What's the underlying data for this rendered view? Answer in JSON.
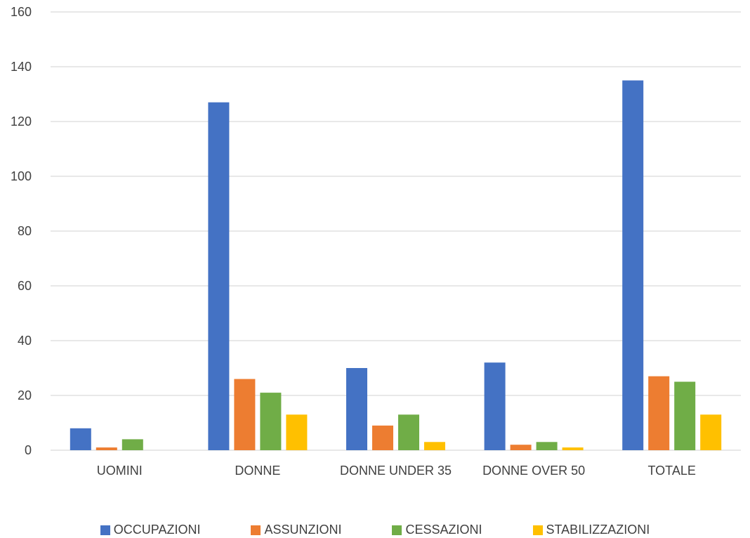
{
  "chart_data": {
    "type": "bar",
    "categories": [
      "UOMINI",
      "DONNE",
      "DONNE UNDER 35",
      "DONNE OVER 50",
      "TOTALE"
    ],
    "series": [
      {
        "name": "OCCUPAZIONI",
        "color": "#4472C4",
        "values": [
          8,
          127,
          30,
          32,
          135
        ]
      },
      {
        "name": "ASSUNZIONI",
        "color": "#ED7D31",
        "values": [
          1,
          26,
          9,
          2,
          27
        ]
      },
      {
        "name": "CESSAZIONI",
        "color": "#70AD47",
        "values": [
          4,
          21,
          13,
          3,
          25
        ]
      },
      {
        "name": "STABILIZZAZIONI",
        "color": "#FFC000",
        "values": [
          0,
          13,
          3,
          1,
          13
        ]
      }
    ],
    "ylim": [
      0,
      160
    ],
    "yticks": [
      0,
      20,
      40,
      60,
      80,
      100,
      120,
      140,
      160
    ],
    "grid": true,
    "legend_position": "bottom"
  }
}
